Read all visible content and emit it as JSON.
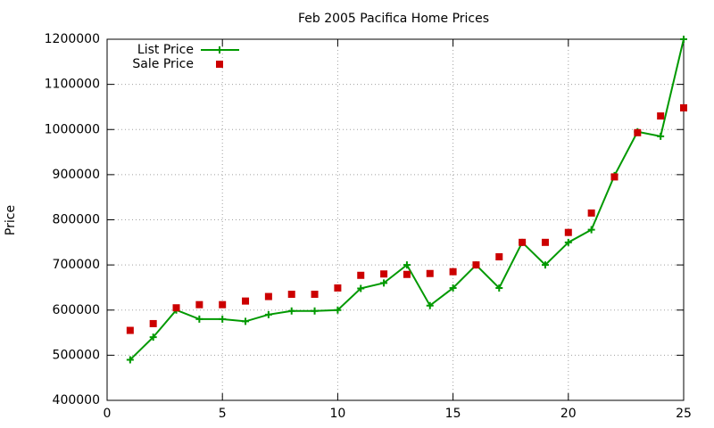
{
  "chart_data": {
    "type": "line",
    "title": "Feb 2005 Pacifica Home Prices",
    "y_label": "Price",
    "x": [
      1,
      2,
      3,
      4,
      5,
      6,
      7,
      8,
      9,
      10,
      11,
      12,
      13,
      14,
      15,
      16,
      17,
      18,
      19,
      20,
      21,
      22,
      23,
      24,
      25
    ],
    "series": [
      {
        "name": "List Price",
        "color": "#009900",
        "style": "linespoints",
        "values": [
          490000,
          540000,
          600000,
          580000,
          580000,
          575000,
          590000,
          598000,
          598000,
          600000,
          648000,
          660000,
          700000,
          610000,
          649000,
          700000,
          649000,
          750000,
          700000,
          750000,
          778000,
          898000,
          995000,
          985000,
          1200000
        ]
      },
      {
        "name": "Sale Price",
        "color": "#cc0000",
        "style": "points",
        "values": [
          555000,
          570000,
          605000,
          612000,
          612000,
          620000,
          630000,
          635000,
          635000,
          649000,
          677000,
          680000,
          679000,
          681000,
          685000,
          700000,
          718000,
          750000,
          750000,
          772000,
          815000,
          895000,
          993000,
          1030000,
          1048000
        ]
      }
    ],
    "xlim": [
      0,
      25
    ],
    "xticks": [
      0,
      5,
      10,
      15,
      20,
      25
    ],
    "ylim": [
      400000,
      1200000
    ],
    "yticks": [
      400000,
      500000,
      600000,
      700000,
      800000,
      900000,
      1000000,
      1100000,
      1200000
    ],
    "grid": true,
    "legend": "top-left"
  }
}
